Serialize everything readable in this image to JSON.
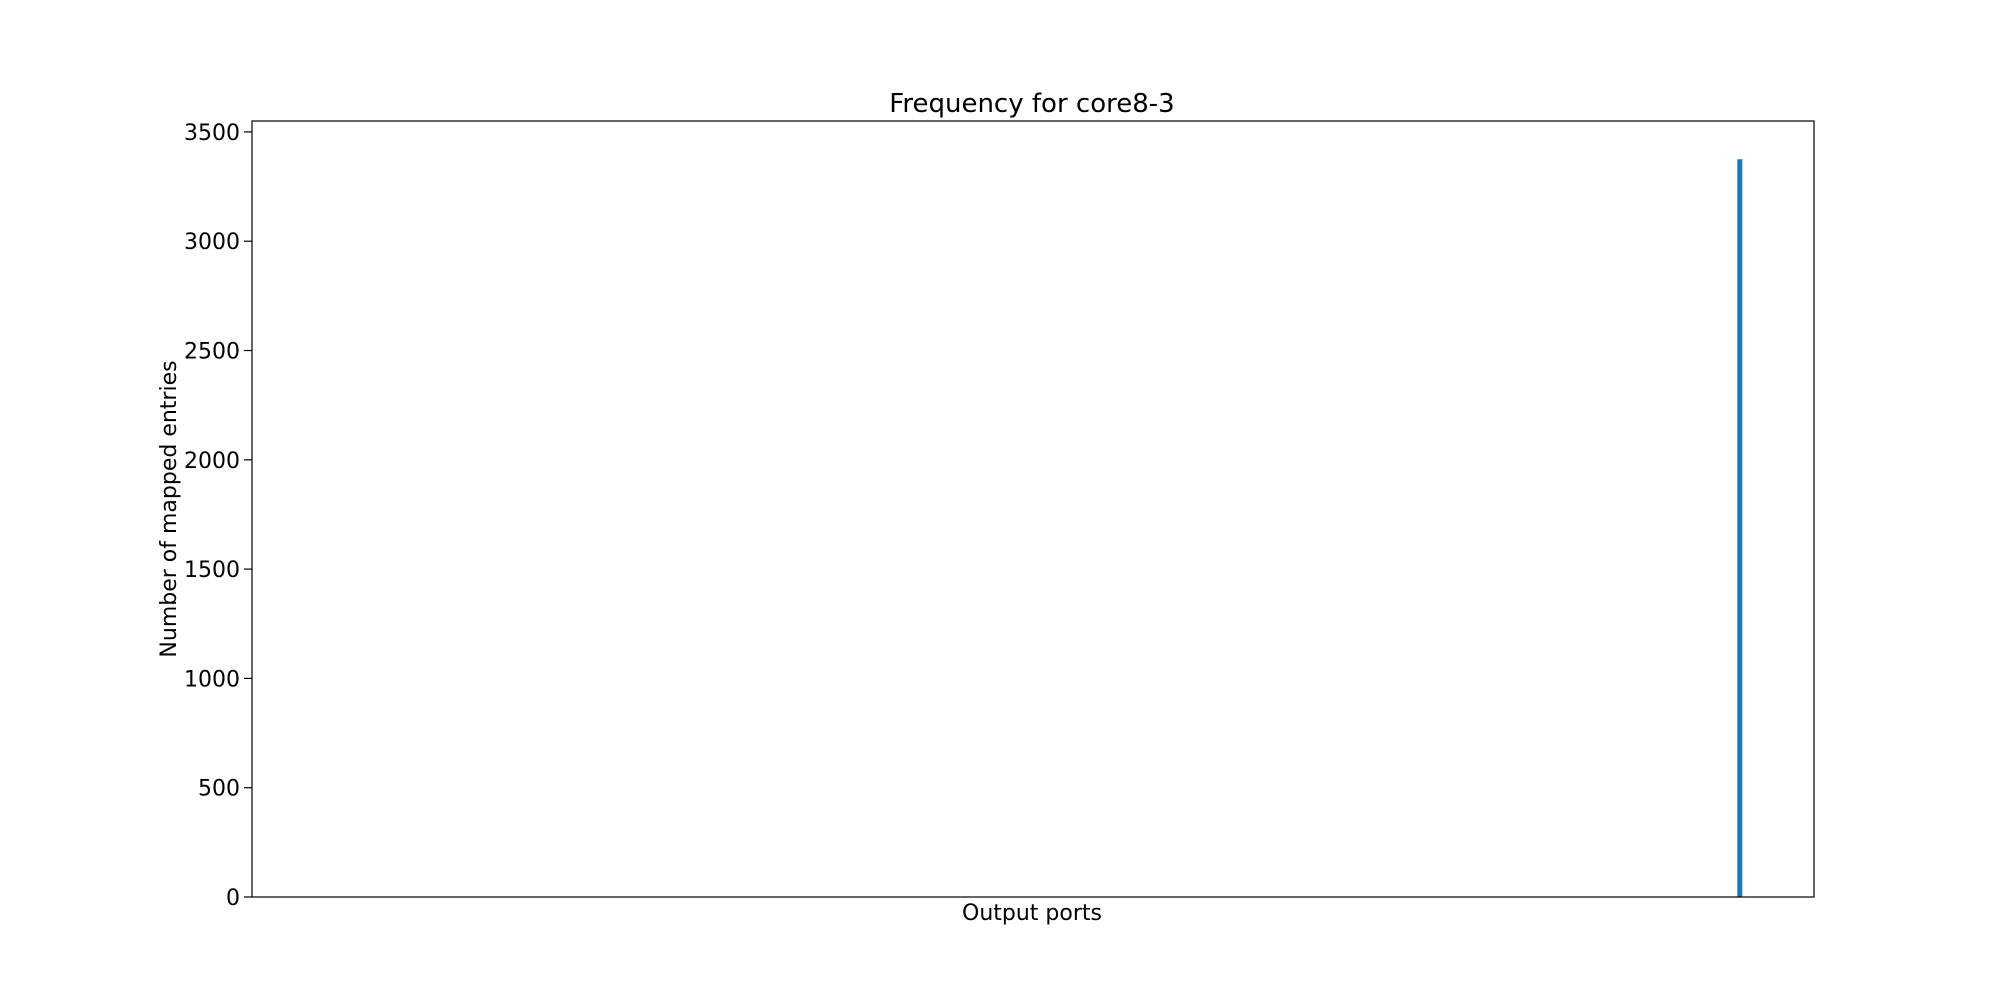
{
  "chart_data": {
    "type": "bar",
    "title": "Frequency for core8-3",
    "xlabel": "Output ports",
    "ylabel": "Number of mapped entries",
    "x_tick_labels": [],
    "ylim": [
      0,
      3550
    ],
    "y_ticks": [
      0,
      500,
      1000,
      1500,
      2000,
      2500,
      3000,
      3500
    ],
    "bar_color": "#1f77b4",
    "grid": false,
    "legend": "none",
    "bars": [
      {
        "x_fraction": 0.9525,
        "value": 3375
      }
    ]
  }
}
